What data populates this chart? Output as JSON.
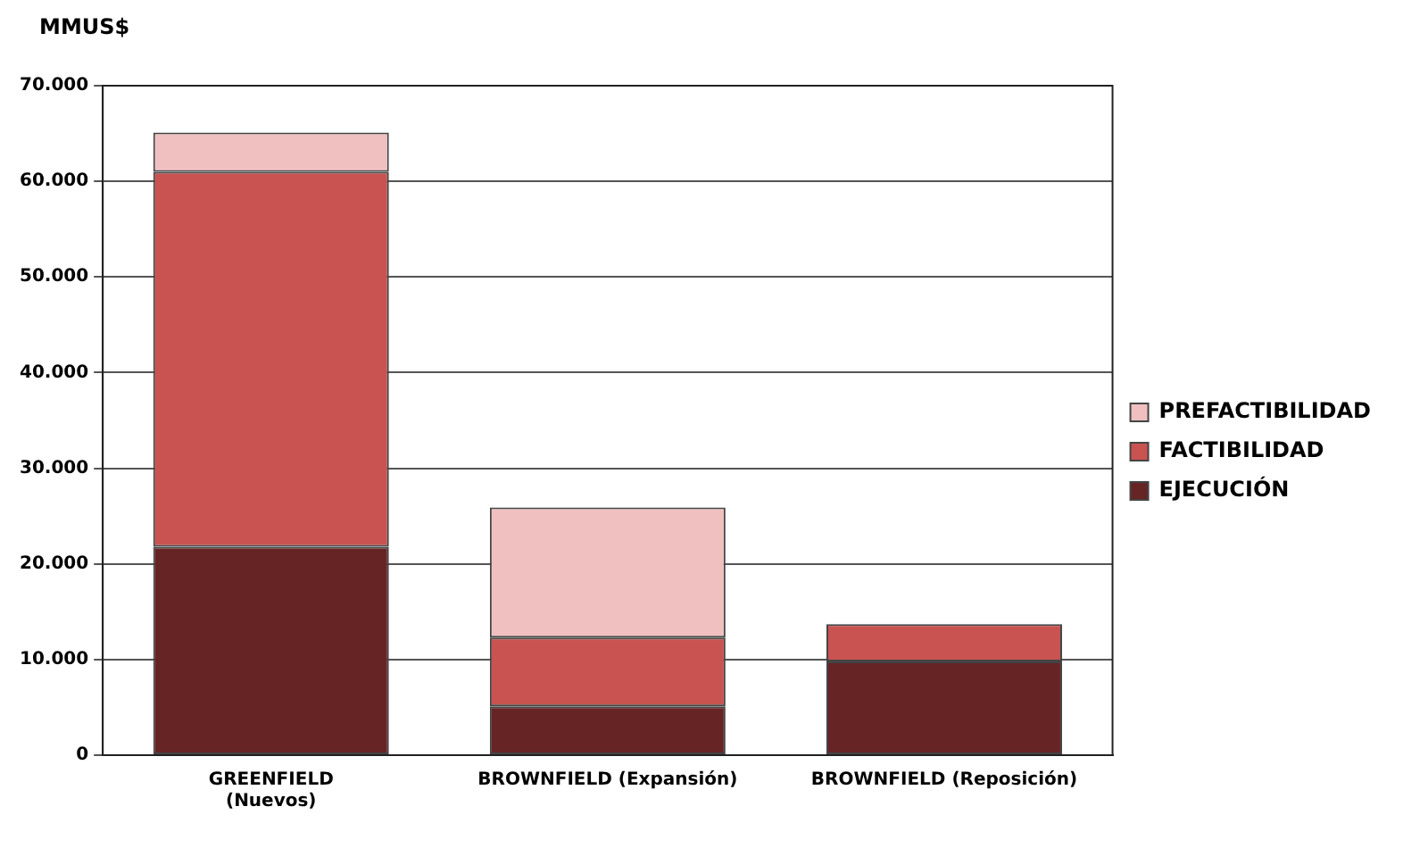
{
  "chart_data": {
    "type": "bar",
    "stacked": true,
    "ylabel": "MMUS$",
    "categories": [
      "GREENFIELD\n(Nuevos)",
      "BROWNFIELD (Expansión)",
      "BROWNFIELD (Reposición)"
    ],
    "series": [
      {
        "name": "EJECUCIÓN",
        "color": "#662425",
        "values": [
          21800,
          5100,
          9800
        ]
      },
      {
        "name": "FACTIBILIDAD",
        "color": "#c85350",
        "values": [
          39200,
          7200,
          3900
        ]
      },
      {
        "name": "PREFACTIBILIDAD",
        "color": "#f0c0c0",
        "values": [
          4100,
          13600,
          0
        ]
      }
    ],
    "ylim": [
      0,
      70000
    ],
    "yticks": [
      {
        "value": 0,
        "label": "0"
      },
      {
        "value": 10000,
        "label": "10.000"
      },
      {
        "value": 20000,
        "label": "20.000"
      },
      {
        "value": 30000,
        "label": "30.000"
      },
      {
        "value": 40000,
        "label": "40.000"
      },
      {
        "value": 50000,
        "label": "50.000"
      },
      {
        "value": 60000,
        "label": "60.000"
      },
      {
        "value": 70000,
        "label": "70.000"
      }
    ],
    "grid": "y",
    "legend": "right"
  }
}
